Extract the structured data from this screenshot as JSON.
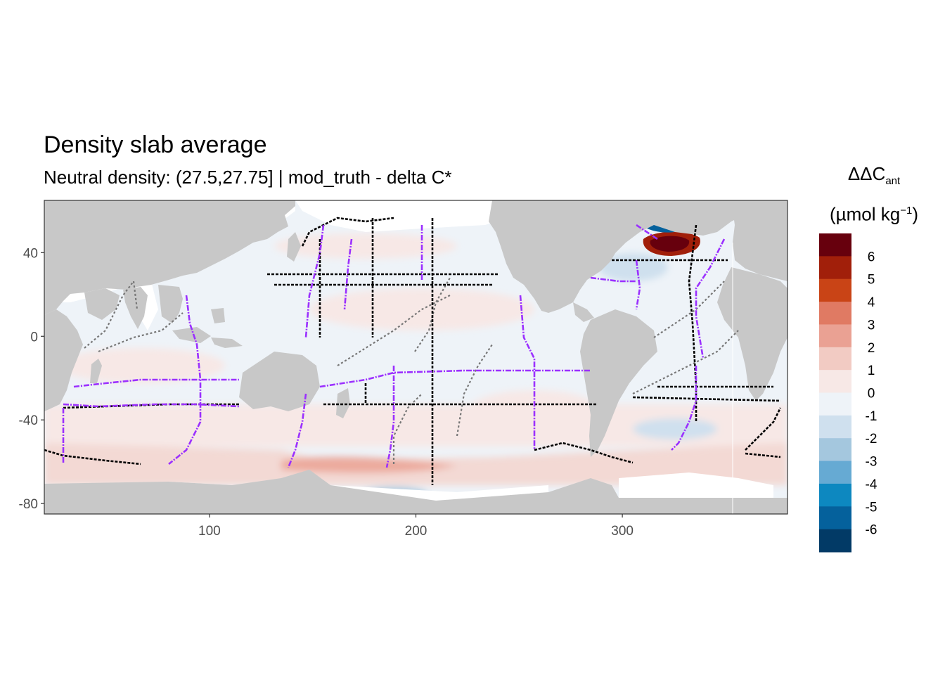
{
  "title": "Density slab average",
  "subtitle": "Neutral density: (27.5,27.75] | mod_truth - delta C*",
  "legend": {
    "title_main": "ΔΔC",
    "title_sub": "ant",
    "unit_open": "(µmol kg",
    "unit_sup": "−1",
    "unit_close": ")",
    "bins": [
      {
        "color": "#67000d",
        "label": "6"
      },
      {
        "color": "#a11f0a",
        "label": "5"
      },
      {
        "color": "#c94416",
        "label": "4"
      },
      {
        "color": "#e07a63",
        "label": "3"
      },
      {
        "color": "#eaa193",
        "label": "2"
      },
      {
        "color": "#f2cbc3",
        "label": "1"
      },
      {
        "color": "#f7e8e6",
        "label": "0"
      },
      {
        "color": "#eef3f8",
        "label": "-1"
      },
      {
        "color": "#cfe0ee",
        "label": "-2"
      },
      {
        "color": "#a4c7de",
        "label": "-3"
      },
      {
        "color": "#66aad3",
        "label": "-4"
      },
      {
        "color": "#0d88c0",
        "label": "-5"
      },
      {
        "color": "#05619c",
        "label": "-6"
      },
      {
        "color": "#023a66",
        "label": ""
      }
    ]
  },
  "chart_data": {
    "type": "heatmap",
    "xlim": [
      20,
      380
    ],
    "ylim": [
      -85,
      65
    ],
    "x_ticks": [
      100,
      200,
      300
    ],
    "y_ticks": [
      40,
      0,
      -40,
      -80
    ],
    "colors": {
      "land": "#c8c8c8",
      "no_data": "#ffffff",
      "panel_border": "#333333",
      "cruise_current": "#9b30ff",
      "cruise_past": "#000000",
      "cruise_old": "#777777"
    },
    "regions": [
      {
        "type": "ocean_base",
        "value": -0.5
      },
      {
        "type": "southern_band",
        "lat_range": [
          -75,
          -60
        ],
        "value": 1.5
      },
      {
        "type": "southern_ocean",
        "lat_range": [
          -60,
          -40
        ],
        "value": 0.5
      },
      {
        "type": "north_atlantic_hotspot",
        "lon": 330,
        "lat": 44,
        "value": 6.5
      },
      {
        "type": "nordic_seas",
        "lon": 335,
        "lat": 58,
        "value": -5.5
      }
    ]
  }
}
